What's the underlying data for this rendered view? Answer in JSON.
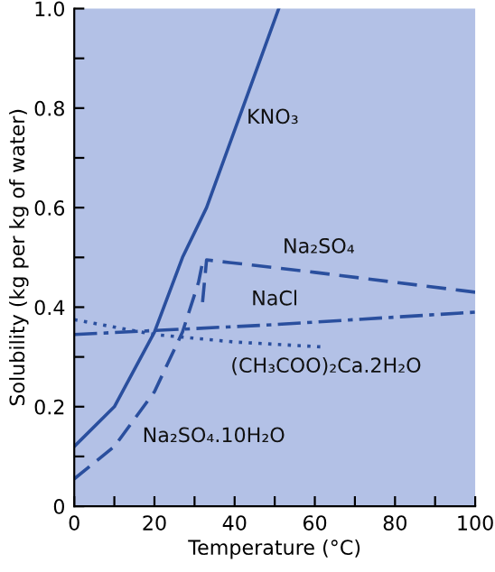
{
  "chart_data": {
    "type": "line",
    "xlabel": "Temperature (°C)",
    "ylabel": "Solubility (kg per kg of water)",
    "xlim": [
      0,
      100
    ],
    "ylim": [
      0,
      1.0
    ],
    "xticks": [
      0,
      {
        "value": 10,
        "label": null
      },
      20,
      {
        "value": 30,
        "label": null
      },
      40,
      {
        "value": 50,
        "label": null
      },
      60,
      {
        "value": 70,
        "label": null
      },
      80,
      {
        "value": 90,
        "label": null
      },
      100
    ],
    "yticks": [
      0,
      {
        "value": 0.1,
        "label": null
      },
      0.2,
      {
        "value": 0.3,
        "label": null
      },
      0.4,
      {
        "value": 0.5,
        "label": null
      },
      0.6,
      {
        "value": 0.7,
        "label": null
      },
      0.8,
      {
        "value": 0.9,
        "label": null
      },
      {
        "value": 1.0,
        "label": "1.0"
      }
    ],
    "grid": false,
    "legend": false,
    "marker": "none",
    "series": [
      {
        "name": "KNO₃",
        "color": "#2a4f9e",
        "line_style": "solid",
        "x": [
          0,
          10,
          20,
          27,
          33,
          42,
          51
        ],
        "values": [
          0.12,
          0.2,
          0.35,
          0.5,
          0.6,
          0.8,
          1.0
        ]
      },
      {
        "name": "Na₂SO₄",
        "color": "#2a4f9e",
        "line_style": "dashed",
        "x": [
          32,
          33,
          60,
          100
        ],
        "values": [
          0.41,
          0.495,
          0.47,
          0.43
        ]
      },
      {
        "name": "NaCl",
        "color": "#2a4f9e",
        "line_style": "dashdot",
        "x": [
          0,
          50,
          100
        ],
        "values": [
          0.345,
          0.365,
          0.39
        ]
      },
      {
        "name": "(CH₃COO)₂Ca.2H₂O",
        "color": "#2a4f9e",
        "line_style": "dotted",
        "x": [
          0,
          20,
          40,
          62
        ],
        "values": [
          0.375,
          0.345,
          0.33,
          0.32
        ]
      },
      {
        "name": "Na₂SO₄.10H₂O",
        "color": "#2a4f9e",
        "line_style": "dashed",
        "x": [
          0,
          10,
          20,
          27,
          31,
          32
        ],
        "values": [
          0.055,
          0.12,
          0.23,
          0.35,
          0.45,
          0.49
        ]
      }
    ]
  }
}
